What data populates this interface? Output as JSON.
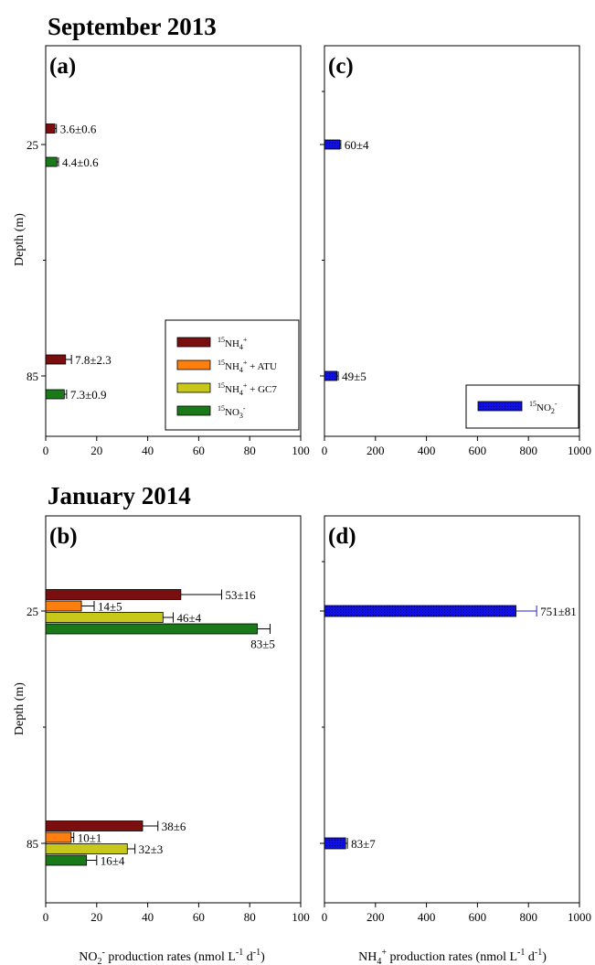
{
  "sections": [
    {
      "title": "September 2013"
    },
    {
      "title": "January 2014"
    }
  ],
  "colors": {
    "nh4": "#7b0f0f",
    "nh4_atu": "#ff7f0e",
    "nh4_gc7": "#c8c81a",
    "no3": "#1a7a1a",
    "no2": "#1010e0",
    "errorbar_d": "#2222cc"
  },
  "axes": {
    "depth_label": "Depth (m)",
    "depth_ticks": [
      "25",
      "85"
    ],
    "x_label_left": "NO2- production rates  (nmol L-1 d-1)",
    "x_label_right": "NH4+ production rates  (nmol L-1 d-1)"
  },
  "legend_a": {
    "items": [
      {
        "series": "nh4",
        "iso": "15",
        "main": "NH",
        "sub": "4",
        "sup": "+",
        "tail": ""
      },
      {
        "series": "nh4_atu",
        "iso": "15",
        "main": "NH",
        "sub": "4",
        "sup": "+",
        "tail": " + ATU"
      },
      {
        "series": "nh4_gc7",
        "iso": "15",
        "main": "NH",
        "sub": "4",
        "sup": "+",
        "tail": " + GC7"
      },
      {
        "series": "no3",
        "iso": "15",
        "main": "NO",
        "sub": "3",
        "sup": "-",
        "tail": ""
      }
    ]
  },
  "legend_c": {
    "items": [
      {
        "series": "no2",
        "iso": "15",
        "main": "NO",
        "sub": "2",
        "sup": "-",
        "tail": ""
      }
    ]
  },
  "chart_data": [
    {
      "panel": "(a)",
      "type": "bar",
      "orientation": "horizontal",
      "xlim": [
        0,
        100
      ],
      "xticks": [
        0,
        20,
        40,
        60,
        80,
        100
      ],
      "depths": [
        25,
        85
      ],
      "series": [
        {
          "key": "nh4",
          "name": "15NH4+",
          "values": [
            3.6,
            7.8
          ],
          "errors": [
            0.6,
            2.3
          ],
          "labels": [
            "3.6±0.6",
            "7.8±2.3"
          ]
        },
        {
          "key": "no3",
          "name": "15NO3-",
          "values": [
            4.4,
            7.3
          ],
          "errors": [
            0.6,
            0.9
          ],
          "labels": [
            "4.4±0.6",
            "7.3±0.9"
          ]
        }
      ]
    },
    {
      "panel": "(c)",
      "type": "bar",
      "orientation": "horizontal",
      "xlim": [
        0,
        1000
      ],
      "xticks": [
        0,
        200,
        400,
        600,
        800,
        1000
      ],
      "depths": [
        25,
        85
      ],
      "series": [
        {
          "key": "no2",
          "name": "15NO2-",
          "values": [
            60,
            49
          ],
          "errors": [
            4,
            5
          ],
          "labels": [
            "60±4",
            "49±5"
          ]
        }
      ]
    },
    {
      "panel": "(b)",
      "type": "bar",
      "orientation": "horizontal",
      "xlim": [
        0,
        100
      ],
      "xticks": [
        0,
        20,
        40,
        60,
        80,
        100
      ],
      "depths": [
        25,
        85
      ],
      "series": [
        {
          "key": "nh4",
          "name": "15NH4+",
          "values": [
            53,
            38
          ],
          "errors": [
            16,
            6
          ],
          "labels": [
            "53±16",
            "38±6"
          ]
        },
        {
          "key": "nh4_atu",
          "name": "15NH4+ + ATU",
          "values": [
            14,
            10
          ],
          "errors": [
            5,
            1
          ],
          "labels": [
            "14±5",
            "10±1"
          ]
        },
        {
          "key": "nh4_gc7",
          "name": "15NH4+ + GC7",
          "values": [
            46,
            32
          ],
          "errors": [
            4,
            3
          ],
          "labels": [
            "46±4",
            "32±3"
          ]
        },
        {
          "key": "no3",
          "name": "15NO3-",
          "values": [
            83,
            16
          ],
          "errors": [
            5,
            4
          ],
          "labels": [
            "83±5",
            "16±4"
          ]
        }
      ]
    },
    {
      "panel": "(d)",
      "type": "bar",
      "orientation": "horizontal",
      "xlim": [
        0,
        1000
      ],
      "xticks": [
        0,
        200,
        400,
        600,
        800,
        1000
      ],
      "depths": [
        25,
        85
      ],
      "series": [
        {
          "key": "no2",
          "name": "15NO2-",
          "values": [
            751,
            83
          ],
          "errors": [
            81,
            7
          ],
          "labels": [
            "751±81",
            "83±7"
          ]
        }
      ]
    }
  ]
}
